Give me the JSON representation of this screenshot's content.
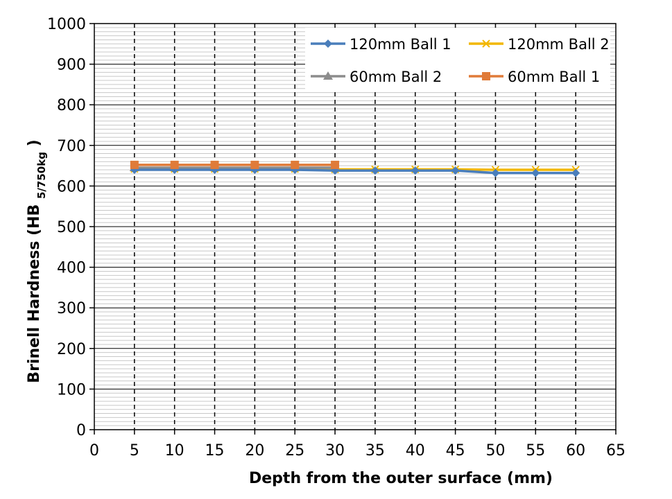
{
  "chart_data": {
    "type": "line",
    "title": "",
    "xlabel": "Depth from the outer surface (mm)",
    "ylabel_main": "Brinell Hardness (HB",
    "ylabel_sub": "5/750kg",
    "ylabel_close": ")",
    "xlim": [
      0,
      65
    ],
    "ylim": [
      0,
      1000
    ],
    "x_ticks": [
      "0",
      "5",
      "10",
      "15",
      "20",
      "25",
      "30",
      "35",
      "40",
      "45",
      "50",
      "55",
      "60",
      "65"
    ],
    "y_ticks": [
      "0",
      "100",
      "200",
      "300",
      "400",
      "500",
      "600",
      "700",
      "800",
      "900",
      "1000"
    ],
    "grid": true,
    "legend_position": "top-right",
    "series": [
      {
        "name": "120mm Ball 1",
        "color": "#4a7ebb",
        "marker": "diamond",
        "x": [
          5,
          10,
          15,
          20,
          25,
          30,
          35,
          40,
          45,
          50,
          55,
          60
        ],
        "y": [
          640,
          640,
          640,
          640,
          640,
          638,
          638,
          638,
          638,
          632,
          632,
          632
        ]
      },
      {
        "name": "120mm Ball 2",
        "color": "#f2b701",
        "marker": "x",
        "x": [
          5,
          10,
          15,
          20,
          25,
          30,
          35,
          40,
          45,
          50,
          55,
          60
        ],
        "y": [
          642,
          642,
          642,
          642,
          642,
          641,
          641,
          641,
          641,
          640,
          640,
          640
        ]
      },
      {
        "name": "60mm Ball 2",
        "color": "#8c8c8c",
        "marker": "triangle",
        "x": [
          5,
          10,
          15,
          20,
          25,
          30
        ],
        "y": [
          645,
          645,
          645,
          645,
          645,
          645
        ]
      },
      {
        "name": "60mm Ball 1",
        "color": "#e07b39",
        "marker": "square",
        "x": [
          5,
          10,
          15,
          20,
          25,
          30
        ],
        "y": [
          652,
          652,
          652,
          652,
          652,
          652
        ]
      }
    ]
  }
}
